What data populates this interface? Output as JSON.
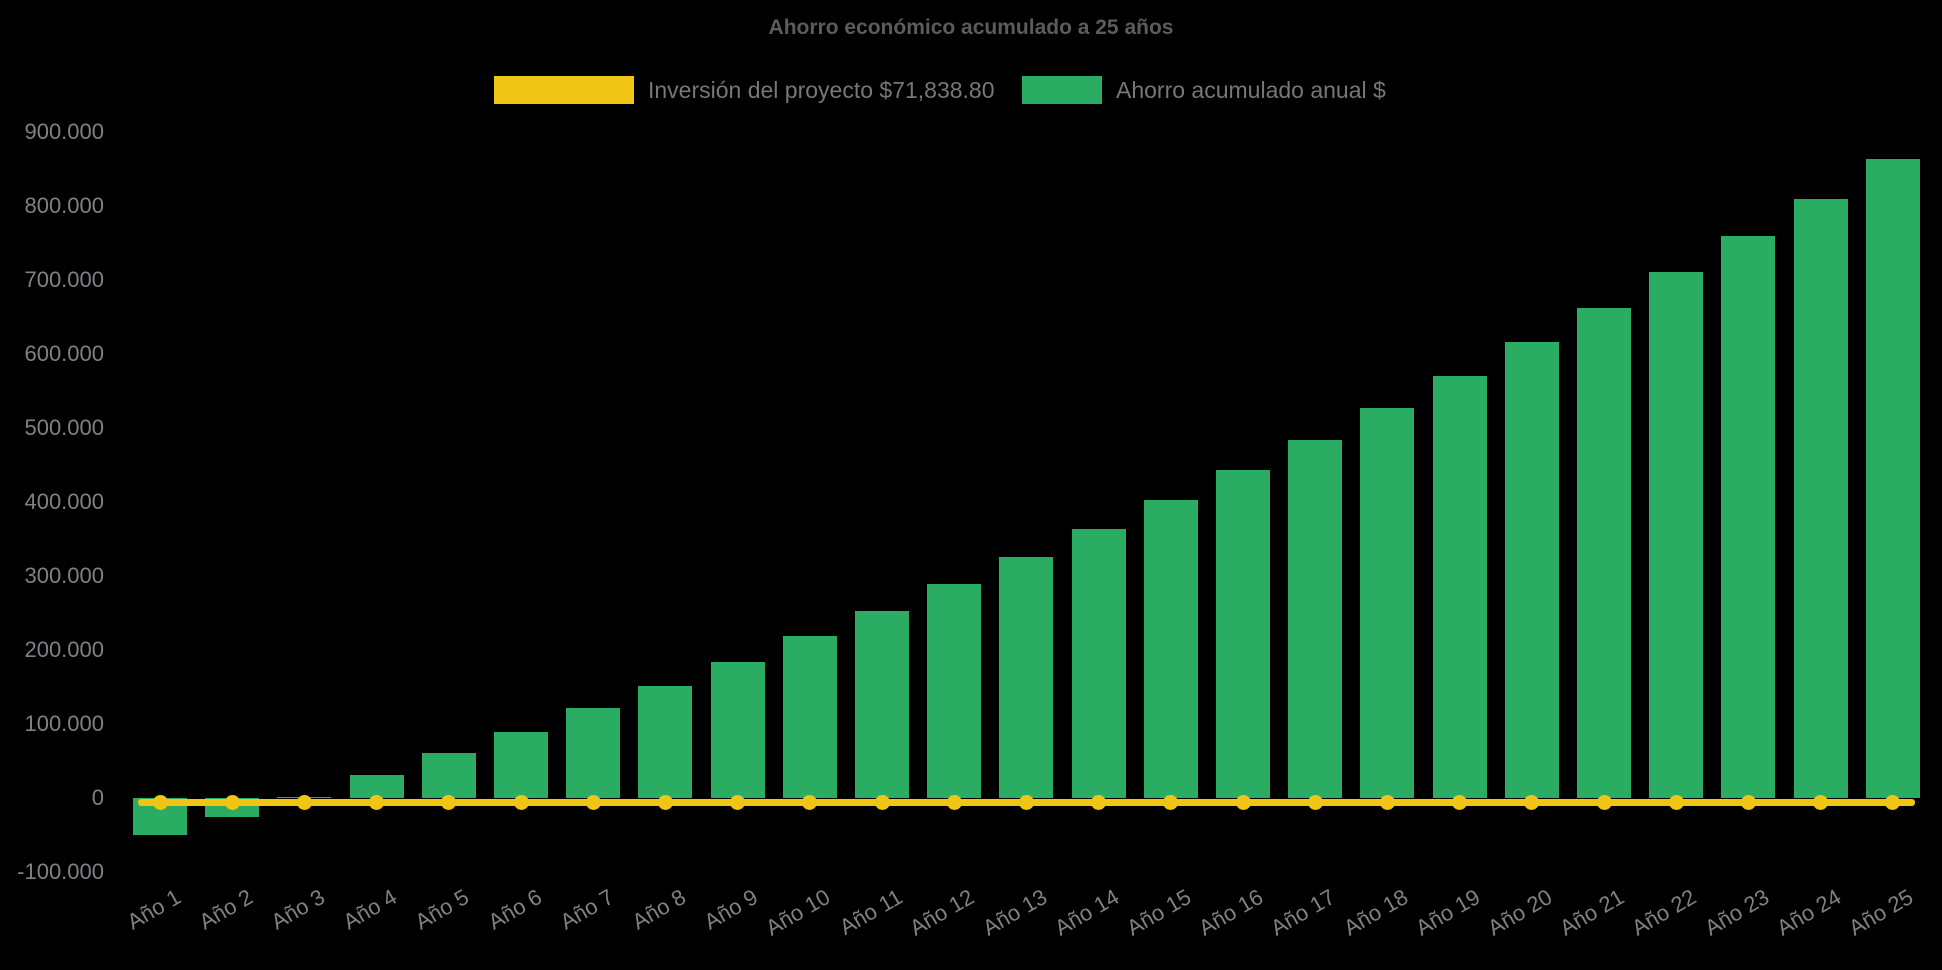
{
  "page": {
    "background": "#000000"
  },
  "colors": {
    "bar_green": "#2aad63",
    "line_yellow": "#f0c513",
    "title_text": "#5b5c5e",
    "legend_text": "#76777a",
    "axis_text": "#7f8184",
    "background": "#000000"
  },
  "chart_data": {
    "type": "bar",
    "title": "Ahorro económico acumulado a 25 años",
    "legend_position": "top",
    "grid": false,
    "categories": [
      "Año 1",
      "Año 2",
      "Año 3",
      "Año 4",
      "Año 5",
      "Año 6",
      "Año 7",
      "Año 8",
      "Año 9",
      "Año 10",
      "Año 11",
      "Año 12",
      "Año 13",
      "Año 14",
      "Año 15",
      "Año 16",
      "Año 17",
      "Año 18",
      "Año 19",
      "Año 20",
      "Año 21",
      "Año 22",
      "Año 23",
      "Año 24",
      "Año 25"
    ],
    "series": [
      {
        "name": "Inversión del proyecto $71,838.80",
        "type": "line",
        "color": "#f0c513",
        "marker": "circle",
        "values": [
          -6000,
          -6000,
          -6000,
          -6000,
          -6000,
          -6000,
          -6000,
          -6000,
          -6000,
          -6000,
          -6000,
          -6000,
          -6000,
          -6000,
          -6000,
          -6000,
          -6000,
          -6000,
          -6000,
          -6000,
          -6000,
          -6000,
          -6000,
          -6000,
          -6000
        ]
      },
      {
        "name": "Ahorro acumulado anual $",
        "type": "bar",
        "color": "#2aad63",
        "values": [
          -50000,
          -26000,
          2000,
          31000,
          61000,
          89000,
          122000,
          151000,
          184000,
          219000,
          253000,
          289000,
          326000,
          364000,
          403000,
          443000,
          484000,
          527000,
          570000,
          616000,
          662000,
          711000,
          760000,
          810000,
          863000
        ]
      }
    ],
    "y_axis": {
      "min": -100000,
      "max": 900000,
      "tick_step": 100000,
      "ticks": [
        {
          "label": "900.000",
          "value": 900000
        },
        {
          "label": "800.000",
          "value": 800000
        },
        {
          "label": "700.000",
          "value": 700000
        },
        {
          "label": "600.000",
          "value": 600000
        },
        {
          "label": "500.000",
          "value": 500000
        },
        {
          "label": "400.000",
          "value": 400000
        },
        {
          "label": "300.000",
          "value": 300000
        },
        {
          "label": "200.000",
          "value": 200000
        },
        {
          "label": "100.000",
          "value": 100000
        },
        {
          "label": "0",
          "value": 0
        },
        {
          "label": "-100.000",
          "value": -100000
        }
      ]
    },
    "x_axis": {
      "label_rotation_deg": -30
    }
  }
}
